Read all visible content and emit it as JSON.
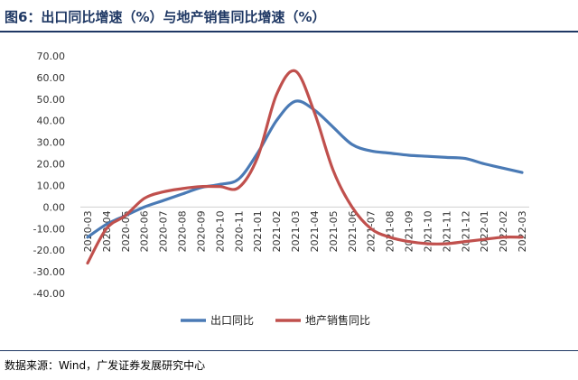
{
  "figure": {
    "title": "图6：出口同比增速（%）与地产销售同比增速（%）",
    "source": "数据来源：Wind，广发证券发展研究中心"
  },
  "chart_data": {
    "type": "line",
    "title": "",
    "xlabel": "",
    "ylabel": "",
    "ylim": [
      -40,
      70
    ],
    "yticks": [
      "70.00",
      "60.00",
      "50.00",
      "40.00",
      "30.00",
      "20.00",
      "10.00",
      "0.00",
      "-10.00",
      "-20.00",
      "-30.00",
      "-40.00"
    ],
    "grid": false,
    "legend": "bottom",
    "categories": [
      "2020-03",
      "2020-04",
      "2020-05",
      "2020-06",
      "2020-07",
      "2020-08",
      "2020-09",
      "2020-10",
      "2020-11",
      "2021-01",
      "2021-02",
      "2021-03",
      "2021-04",
      "2021-05",
      "2021-06",
      "2021-07",
      "2021-08",
      "2021-09",
      "2021-10",
      "2021-11",
      "2021-12",
      "2022-01",
      "2022-02",
      "2022-03"
    ],
    "series": [
      {
        "name": "出口同比",
        "color": "#4a7ab5",
        "values": [
          -14,
          -8,
          -4,
          0,
          3,
          6,
          9,
          10.5,
          13,
          25,
          40,
          49,
          45,
          37,
          29,
          26,
          25,
          24,
          23.5,
          23,
          22.5,
          20,
          18,
          16
        ]
      },
      {
        "name": "地产销售同比",
        "color": "#c0504d",
        "values": [
          -26,
          -10,
          -4,
          4,
          7,
          8.5,
          9.5,
          9.5,
          9,
          23,
          52,
          63,
          44,
          17,
          0,
          -10,
          -14,
          -16,
          -17,
          -17,
          -16,
          -15,
          -14,
          -14
        ]
      }
    ]
  }
}
